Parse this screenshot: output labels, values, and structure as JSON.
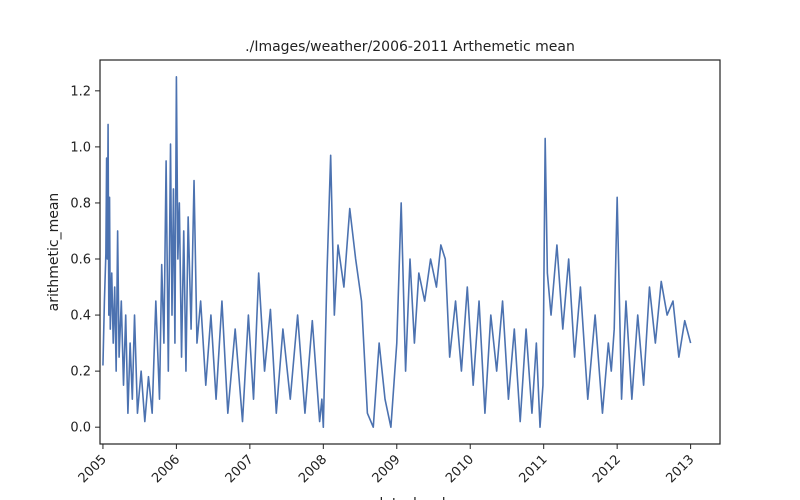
{
  "chart_data": {
    "type": "line",
    "title": "./Images/weather/2006-2011 Arthemetic mean",
    "xlabel": "date_local",
    "ylabel": "arithmetic_mean",
    "xlim": [
      2004.96,
      2013.4
    ],
    "ylim": [
      -0.06,
      1.31
    ],
    "x_ticks": [
      2005,
      2006,
      2007,
      2008,
      2009,
      2010,
      2011,
      2012,
      2013
    ],
    "x_tick_labels": [
      "2005",
      "2006",
      "2007",
      "2008",
      "2009",
      "2010",
      "2011",
      "2012",
      "2013"
    ],
    "y_ticks": [
      0.0,
      0.2,
      0.4,
      0.6,
      0.8,
      1.0,
      1.2
    ],
    "y_tick_labels": [
      "0.0",
      "0.2",
      "0.4",
      "0.6",
      "0.8",
      "1.0",
      "1.2"
    ],
    "grid": false,
    "series": [
      {
        "name": "arithmetic_mean",
        "color": "#4c72b0",
        "x": [
          2005.0,
          2005.02,
          2005.04,
          2005.05,
          2005.06,
          2005.07,
          2005.08,
          2005.09,
          2005.1,
          2005.12,
          2005.14,
          2005.16,
          2005.18,
          2005.2,
          2005.22,
          2005.25,
          2005.28,
          2005.31,
          2005.34,
          2005.37,
          2005.4,
          2005.43,
          2005.47,
          2005.52,
          2005.57,
          2005.62,
          2005.67,
          2005.72,
          2005.77,
          2005.8,
          2005.83,
          2005.86,
          2005.89,
          2005.92,
          2005.94,
          2005.96,
          2005.98,
          2006.0,
          2006.02,
          2006.04,
          2006.07,
          2006.1,
          2006.13,
          2006.16,
          2006.2,
          2006.24,
          2006.28,
          2006.33,
          2006.4,
          2006.47,
          2006.54,
          2006.62,
          2006.7,
          2006.8,
          2006.9,
          2006.98,
          2007.05,
          2007.12,
          2007.2,
          2007.28,
          2007.36,
          2007.45,
          2007.55,
          2007.65,
          2007.75,
          2007.85,
          2007.95,
          2007.98,
          2008.0,
          2008.05,
          2008.1,
          2008.15,
          2008.2,
          2008.28,
          2008.36,
          2008.44,
          2008.52,
          2008.6,
          2008.68,
          2008.76,
          2008.84,
          2008.92,
          2009.0,
          2009.06,
          2009.12,
          2009.18,
          2009.24,
          2009.3,
          2009.38,
          2009.46,
          2009.54,
          2009.6,
          2009.66,
          2009.72,
          2009.8,
          2009.88,
          2009.96,
          2010.04,
          2010.12,
          2010.2,
          2010.28,
          2010.36,
          2010.44,
          2010.52,
          2010.6,
          2010.68,
          2010.76,
          2010.84,
          2010.9,
          2010.95,
          2010.99,
          2011.02,
          2011.05,
          2011.1,
          2011.18,
          2011.26,
          2011.34,
          2011.42,
          2011.5,
          2011.6,
          2011.7,
          2011.8,
          2011.88,
          2011.92,
          2011.96,
          2012.0,
          2012.06,
          2012.12,
          2012.2,
          2012.28,
          2012.36,
          2012.44,
          2012.52,
          2012.6,
          2012.68,
          2012.76,
          2012.84,
          2012.92,
          2013.0
        ],
        "y": [
          0.22,
          0.45,
          0.62,
          0.96,
          0.6,
          1.08,
          0.4,
          0.82,
          0.35,
          0.55,
          0.3,
          0.5,
          0.2,
          0.7,
          0.25,
          0.45,
          0.15,
          0.4,
          0.05,
          0.3,
          0.1,
          0.4,
          0.05,
          0.2,
          0.02,
          0.18,
          0.05,
          0.45,
          0.1,
          0.58,
          0.3,
          0.95,
          0.2,
          1.01,
          0.4,
          0.85,
          0.3,
          1.25,
          0.6,
          0.8,
          0.25,
          0.7,
          0.2,
          0.75,
          0.35,
          0.88,
          0.3,
          0.45,
          0.15,
          0.4,
          0.1,
          0.45,
          0.05,
          0.35,
          0.02,
          0.4,
          0.1,
          0.55,
          0.2,
          0.42,
          0.05,
          0.35,
          0.1,
          0.4,
          0.05,
          0.38,
          0.02,
          0.1,
          0.0,
          0.55,
          0.97,
          0.4,
          0.65,
          0.5,
          0.78,
          0.6,
          0.45,
          0.05,
          0.0,
          0.3,
          0.1,
          0.0,
          0.3,
          0.8,
          0.2,
          0.6,
          0.3,
          0.55,
          0.45,
          0.6,
          0.5,
          0.65,
          0.6,
          0.25,
          0.45,
          0.2,
          0.5,
          0.15,
          0.45,
          0.05,
          0.4,
          0.2,
          0.45,
          0.1,
          0.35,
          0.02,
          0.35,
          0.05,
          0.3,
          0.0,
          0.15,
          1.03,
          0.55,
          0.4,
          0.65,
          0.35,
          0.6,
          0.25,
          0.5,
          0.1,
          0.4,
          0.05,
          0.3,
          0.2,
          0.35,
          0.82,
          0.1,
          0.45,
          0.1,
          0.4,
          0.15,
          0.5,
          0.3,
          0.52,
          0.4,
          0.45,
          0.25,
          0.38,
          0.3
        ]
      }
    ]
  }
}
